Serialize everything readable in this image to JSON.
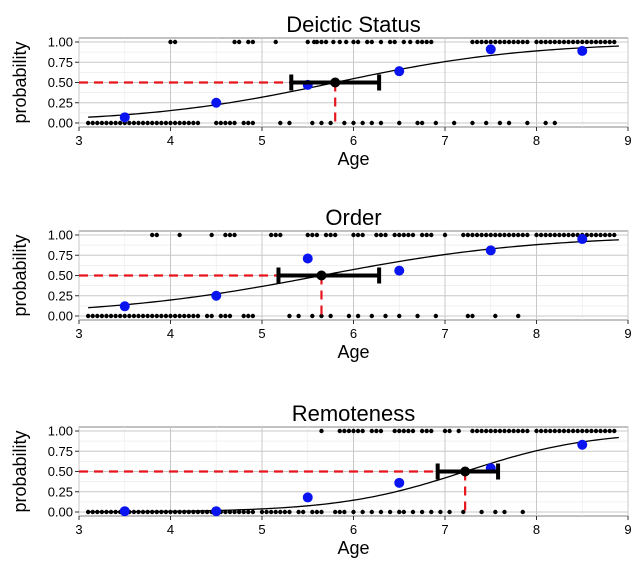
{
  "chart_data": [
    {
      "type": "scatter",
      "title": "Deictic Status",
      "xlabel": "Age",
      "ylabel": "probability",
      "xlim": [
        3,
        9
      ],
      "ylim": [
        0,
        1
      ],
      "x_ticks": [
        "3",
        "4",
        "5",
        "6",
        "7",
        "8",
        "9"
      ],
      "y_ticks": [
        "0.00",
        "0.25",
        "0.50",
        "0.75",
        "1.00"
      ],
      "logistic_curve": {
        "midpoint": 5.8,
        "slope": 0.95
      },
      "threshold": {
        "x": 5.8,
        "y": 0.5,
        "ci": [
          5.32,
          6.28
        ]
      },
      "binned_means": {
        "x": [
          3.5,
          4.5,
          5.5,
          6.5,
          7.5,
          8.5
        ],
        "y": [
          0.07,
          0.25,
          0.47,
          0.64,
          0.91,
          0.89
        ]
      },
      "observations_y1": [
        4.0,
        4.05,
        4.7,
        4.75,
        4.85,
        4.9,
        5.15,
        5.5,
        5.57,
        5.6,
        5.65,
        5.7,
        5.78,
        5.85,
        5.92,
        6.0,
        6.05,
        6.15,
        6.2,
        6.3,
        6.4,
        6.45,
        6.55,
        6.62,
        6.7,
        6.75,
        6.8,
        6.85,
        7.3,
        7.35,
        7.4,
        7.45,
        7.5,
        7.55,
        7.6,
        7.65,
        7.7,
        7.75,
        7.8,
        7.85,
        7.9,
        8.0,
        8.05,
        8.1,
        8.15,
        8.2,
        8.25,
        8.3,
        8.35,
        8.4,
        8.45,
        8.5,
        8.55,
        8.6,
        8.65,
        8.7,
        8.75,
        8.8,
        8.85
      ],
      "observations_y0": [
        3.1,
        3.15,
        3.2,
        3.25,
        3.3,
        3.35,
        3.4,
        3.45,
        3.5,
        3.55,
        3.6,
        3.65,
        3.7,
        3.75,
        3.8,
        3.85,
        3.9,
        3.95,
        4.0,
        4.05,
        4.1,
        4.15,
        4.2,
        4.25,
        4.3,
        4.5,
        4.55,
        4.6,
        4.65,
        4.7,
        4.8,
        4.85,
        4.9,
        5.2,
        5.3,
        5.55,
        5.65,
        5.75,
        5.9,
        6.0,
        6.1,
        6.2,
        6.3,
        6.5,
        6.7,
        6.75,
        6.9,
        7.1,
        7.3,
        7.45,
        7.6,
        7.7,
        7.9,
        8.1,
        8.2
      ]
    },
    {
      "type": "scatter",
      "title": "Order",
      "xlabel": "Age",
      "ylabel": "probability",
      "xlim": [
        3,
        9
      ],
      "ylim": [
        0,
        1
      ],
      "x_ticks": [
        "3",
        "4",
        "5",
        "6",
        "7",
        "8",
        "9"
      ],
      "y_ticks": [
        "0.00",
        "0.25",
        "0.50",
        "0.75",
        "1.00"
      ],
      "logistic_curve": {
        "midpoint": 5.65,
        "slope": 0.85
      },
      "threshold": {
        "x": 5.65,
        "y": 0.5,
        "ci": [
          5.18,
          6.28
        ]
      },
      "binned_means": {
        "x": [
          3.5,
          4.5,
          5.5,
          6.5,
          7.5,
          8.5
        ],
        "y": [
          0.12,
          0.25,
          0.71,
          0.56,
          0.81,
          0.95
        ]
      },
      "observations_y1": [
        3.8,
        3.85,
        4.1,
        4.45,
        4.6,
        4.65,
        4.7,
        5.1,
        5.15,
        5.2,
        5.5,
        5.55,
        5.6,
        5.7,
        5.75,
        5.8,
        6.0,
        6.05,
        6.1,
        6.25,
        6.3,
        6.35,
        6.45,
        6.5,
        6.55,
        6.6,
        6.65,
        6.75,
        6.8,
        6.85,
        7.0,
        7.2,
        7.25,
        7.3,
        7.35,
        7.4,
        7.45,
        7.5,
        7.55,
        7.6,
        7.65,
        7.7,
        7.75,
        7.8,
        7.85,
        7.9,
        8.0,
        8.05,
        8.1,
        8.15,
        8.2,
        8.25,
        8.3,
        8.35,
        8.4,
        8.45,
        8.5,
        8.55,
        8.6,
        8.65,
        8.7,
        8.75,
        8.8,
        8.85
      ],
      "observations_y0": [
        3.1,
        3.15,
        3.2,
        3.25,
        3.3,
        3.35,
        3.4,
        3.45,
        3.5,
        3.55,
        3.6,
        3.65,
        3.7,
        3.75,
        3.8,
        3.85,
        3.9,
        3.95,
        4.0,
        4.05,
        4.1,
        4.15,
        4.2,
        4.25,
        4.3,
        4.4,
        4.45,
        4.55,
        4.6,
        4.65,
        4.8,
        4.85,
        4.9,
        5.3,
        5.4,
        5.55,
        5.65,
        5.75,
        5.95,
        6.05,
        6.2,
        6.35,
        6.5,
        6.7,
        6.9,
        7.25,
        7.3,
        7.55,
        7.8
      ]
    },
    {
      "type": "scatter",
      "title": "Remoteness",
      "xlabel": "Age",
      "ylabel": "probability",
      "xlim": [
        3,
        9
      ],
      "ylim": [
        0,
        1
      ],
      "x_ticks": [
        "3",
        "4",
        "5",
        "6",
        "7",
        "8",
        "9"
      ],
      "y_ticks": [
        "0.00",
        "0.25",
        "0.50",
        "0.75",
        "1.00"
      ],
      "logistic_curve": {
        "midpoint": 7.22,
        "slope": 1.45
      },
      "threshold": {
        "x": 7.22,
        "y": 0.5,
        "ci": [
          6.92,
          7.58
        ]
      },
      "binned_means": {
        "x": [
          3.5,
          4.5,
          5.5,
          6.5,
          7.5,
          8.5
        ],
        "y": [
          0.01,
          0.01,
          0.18,
          0.36,
          0.54,
          0.83
        ]
      },
      "observations_y1": [
        5.65,
        5.85,
        5.9,
        5.95,
        6.0,
        6.05,
        6.1,
        6.2,
        6.25,
        6.3,
        6.45,
        6.5,
        6.55,
        6.6,
        6.65,
        6.75,
        6.8,
        6.85,
        7.0,
        7.05,
        7.15,
        7.3,
        7.35,
        7.4,
        7.45,
        7.5,
        7.55,
        7.6,
        7.65,
        7.7,
        7.75,
        7.8,
        7.85,
        7.9,
        8.0,
        8.05,
        8.1,
        8.15,
        8.2,
        8.25,
        8.3,
        8.35,
        8.4,
        8.45,
        8.5,
        8.55,
        8.6,
        8.65,
        8.7,
        8.75,
        8.8,
        8.85
      ],
      "observations_y0": [
        3.1,
        3.15,
        3.2,
        3.25,
        3.3,
        3.35,
        3.4,
        3.45,
        3.5,
        3.55,
        3.6,
        3.65,
        3.7,
        3.75,
        3.8,
        3.85,
        3.9,
        3.95,
        4.0,
        4.05,
        4.1,
        4.15,
        4.2,
        4.25,
        4.3,
        4.35,
        4.4,
        4.45,
        4.5,
        4.55,
        4.6,
        4.65,
        4.7,
        4.75,
        4.8,
        4.85,
        4.9,
        5.0,
        5.05,
        5.1,
        5.15,
        5.2,
        5.25,
        5.3,
        5.4,
        5.45,
        5.55,
        5.6,
        5.65,
        5.8,
        5.85,
        5.9,
        6.0,
        6.1,
        6.2,
        6.3,
        6.4,
        6.5,
        6.55,
        6.65,
        6.75,
        6.85,
        6.95,
        7.05,
        7.2,
        7.4,
        7.55,
        7.65,
        7.85
      ]
    }
  ]
}
